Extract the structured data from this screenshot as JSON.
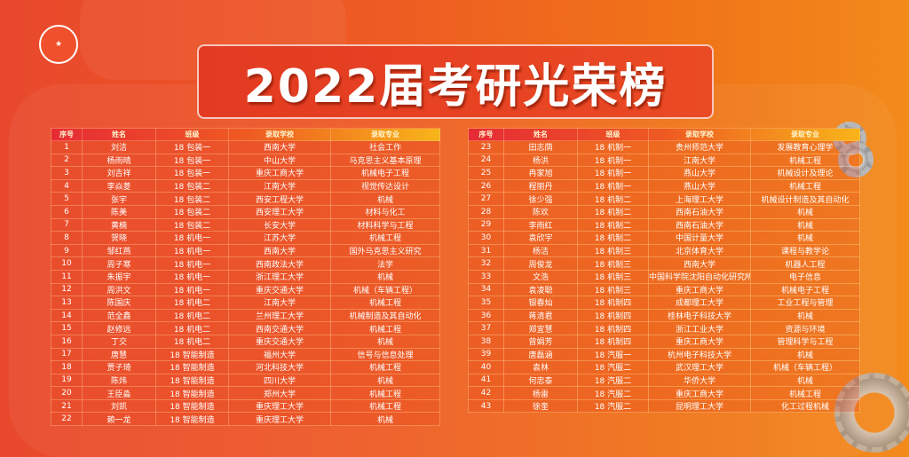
{
  "title": "2022届考研光荣榜",
  "colors": {
    "background": "#ee5a24",
    "header_start": "#e62a35",
    "header_end": "#f8b51a",
    "title_box": "#e33b22"
  },
  "headers": [
    "序号",
    "姓名",
    "班级",
    "录取学校",
    "录取专业"
  ],
  "left_rows": [
    [
      "1",
      "刘洁",
      "18 包装一",
      "西南大学",
      "社会工作"
    ],
    [
      "2",
      "杨雨晴",
      "18 包装一",
      "中山大学",
      "马克思主义基本原理"
    ],
    [
      "3",
      "刘吉祥",
      "18 包装一",
      "重庆工商大学",
      "机械电子工程"
    ],
    [
      "4",
      "李焱菱",
      "18 包装二",
      "江南大学",
      "视觉传达设计"
    ],
    [
      "5",
      "张宇",
      "18 包装二",
      "西安工程大学",
      "机械"
    ],
    [
      "6",
      "陈美",
      "18 包装二",
      "西安理工大学",
      "材料与化工"
    ],
    [
      "7",
      "黄楠",
      "18 包装二",
      "长安大学",
      "材料科学与工程"
    ],
    [
      "8",
      "贺晓",
      "18 机电一",
      "江苏大学",
      "机械工程"
    ],
    [
      "9",
      "邹红燕",
      "18 机电一",
      "西南大学",
      "国外马克思主义研究"
    ],
    [
      "10",
      "周子寒",
      "18 机电一",
      "西南政法大学",
      "法学"
    ],
    [
      "11",
      "朱振宇",
      "18 机电一",
      "浙江理工大学",
      "机械"
    ],
    [
      "12",
      "周洪文",
      "18 机电一",
      "重庆交通大学",
      "机械（车辆工程）"
    ],
    [
      "13",
      "陈国庆",
      "18 机电二",
      "江南大学",
      "机械工程"
    ],
    [
      "14",
      "范全鑫",
      "18 机电二",
      "兰州理工大学",
      "机械制造及其自动化"
    ],
    [
      "15",
      "赵修远",
      "18 机电二",
      "西南交通大学",
      "机械工程"
    ],
    [
      "16",
      "丁交",
      "18 机电二",
      "重庆交通大学",
      "机械"
    ],
    [
      "17",
      "唐慧",
      "18 智能制造",
      "福州大学",
      "信号与信息处理"
    ],
    [
      "18",
      "贾子琦",
      "18 智能制造",
      "河北科技大学",
      "机械工程"
    ],
    [
      "19",
      "陈炜",
      "18 智能制造",
      "四川大学",
      "机械"
    ],
    [
      "20",
      "王臣淼",
      "18 智能制造",
      "郑州大学",
      "机械工程"
    ],
    [
      "21",
      "刘凯",
      "18 智能制造",
      "重庆理工大学",
      "机械工程"
    ],
    [
      "22",
      "赖一龙",
      "18 智能制造",
      "重庆理工大学",
      "机械"
    ]
  ],
  "right_rows": [
    [
      "23",
      "田志荫",
      "18 机制一",
      "贵州师范大学",
      "发展教育心理学"
    ],
    [
      "24",
      "杨洪",
      "18 机制一",
      "江南大学",
      "机械工程"
    ],
    [
      "25",
      "冉家旭",
      "18 机制一",
      "燕山大学",
      "机械设计及理论"
    ],
    [
      "26",
      "程丽丹",
      "18 机制一",
      "燕山大学",
      "机械工程"
    ],
    [
      "27",
      "徐少强",
      "18 机制二",
      "上海理工大学",
      "机械设计制造及其自动化"
    ],
    [
      "28",
      "陈欢",
      "18 机制二",
      "西南石油大学",
      "机械"
    ],
    [
      "29",
      "李雨红",
      "18 机制二",
      "西南石油大学",
      "机械"
    ],
    [
      "30",
      "袁欣宇",
      "18 机制二",
      "中国计量大学",
      "机械"
    ],
    [
      "31",
      "杨洁",
      "18 机制三",
      "北京体育大学",
      "课程与教学论"
    ],
    [
      "32",
      "周俊龙",
      "18 机制三",
      "西南大学",
      "机器人工程"
    ],
    [
      "33",
      "文浩",
      "18 机制三",
      "中国科学院沈阳自动化研究所",
      "电子信息"
    ],
    [
      "34",
      "袁凌聪",
      "18 机制三",
      "重庆工商大学",
      "机械电子工程"
    ],
    [
      "35",
      "银春灿",
      "18 机制四",
      "成都理工大学",
      "工业工程与管理"
    ],
    [
      "36",
      "蒋清君",
      "18 机制四",
      "桂林电子科技大学",
      "机械"
    ],
    [
      "37",
      "郑宜慧",
      "18 机制四",
      "浙江工业大学",
      "资源与环境"
    ],
    [
      "38",
      "曾娟芳",
      "18 机制四",
      "重庆工商大学",
      "管理科学与工程"
    ],
    [
      "39",
      "唐磊涵",
      "18 汽服一",
      "杭州电子科技大学",
      "机械"
    ],
    [
      "40",
      "袁林",
      "18 汽服二",
      "武汉理工大学",
      "机械（车辆工程）"
    ],
    [
      "41",
      "何忠泰",
      "18 汽服二",
      "华侨大学",
      "机械"
    ],
    [
      "42",
      "杨雷",
      "18 汽服二",
      "重庆工商大学",
      "机械工程"
    ],
    [
      "43",
      "徐奎",
      "18 汽服二",
      "昆明理工大学",
      "化工过程机械"
    ]
  ]
}
